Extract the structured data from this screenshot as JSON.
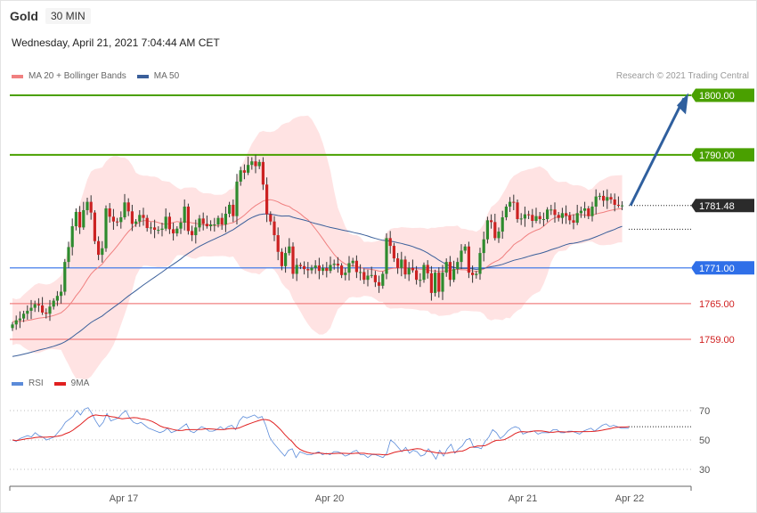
{
  "header": {
    "symbol": "Gold",
    "timeframe": "30 MIN",
    "datetime": "Wednesday, April 21, 2021 7:04:44 AM CET"
  },
  "legend_price": [
    {
      "label": "MA 20 + Bollinger Bands",
      "color": "#f08080"
    },
    {
      "label": "MA 50",
      "color": "#3a5f9a"
    }
  ],
  "credit": "Research © 2021 Trading Central",
  "legend_rsi": [
    {
      "label": "RSI",
      "color": "#5b8bd9"
    },
    {
      "label": "9MA",
      "color": "#e02020"
    }
  ],
  "colors": {
    "up": "#2e8b2e",
    "down": "#cc2222",
    "resistance": "#4aa000",
    "current": "#222222",
    "pivot": "#2f6fe8",
    "support": "#f08080"
  },
  "chart_data": [
    {
      "type": "candlestick",
      "title": "Gold 30 MIN",
      "ylim": [
        1753,
        1803
      ],
      "x_tick_labels": [
        "Apr 17",
        "Apr 20",
        "Apr 21",
        "Apr 22"
      ],
      "levels": [
        {
          "value": 1800.0,
          "label": "1800.00",
          "kind": "resistance"
        },
        {
          "value": 1790.0,
          "label": "1790.00",
          "kind": "resistance"
        },
        {
          "value": 1781.48,
          "label": "1781.48",
          "kind": "current"
        },
        {
          "value": 1771.0,
          "label": "1771.00",
          "kind": "pivot"
        },
        {
          "value": 1765.0,
          "label": "1765.00",
          "kind": "support"
        },
        {
          "value": 1759.0,
          "label": "1759.00",
          "kind": "support"
        }
      ],
      "close": [
        1761.5,
        1762.2,
        1762.5,
        1763.3,
        1763.8,
        1764.3,
        1764.9,
        1764.7,
        1763.5,
        1763.3,
        1764.5,
        1765.5,
        1766.3,
        1767.0,
        1772.0,
        1774.5,
        1778.0,
        1780.4,
        1777.8,
        1780.7,
        1782.1,
        1780.3,
        1775.5,
        1773.2,
        1774.3,
        1781.0,
        1779.6,
        1778.8,
        1778.7,
        1779.5,
        1782.0,
        1780.5,
        1778.4,
        1778.8,
        1779.9,
        1779.4,
        1777.7,
        1777.8,
        1777.4,
        1777.4,
        1777.6,
        1779.6,
        1777.5,
        1776.8,
        1777.6,
        1778.6,
        1781.3,
        1777.2,
        1776.5,
        1777.8,
        1779.3,
        1778.4,
        1778.0,
        1778.3,
        1778.3,
        1779.4,
        1778.3,
        1780.1,
        1781.6,
        1779.7,
        1785.5,
        1787.4,
        1787.0,
        1788.3,
        1788.9,
        1788.1,
        1788.8,
        1785.0,
        1780.0,
        1778.8,
        1776.5,
        1773.7,
        1771.3,
        1773.5,
        1774.6,
        1770.0,
        1771.5,
        1771.3,
        1770.8,
        1770.6,
        1771.0,
        1771.4,
        1770.5,
        1771.0,
        1770.5,
        1771.5,
        1771.7,
        1771.4,
        1769.8,
        1770.2,
        1771.8,
        1772.2,
        1770.3,
        1770.3,
        1769.0,
        1769.7,
        1769.8,
        1768.6,
        1768.0,
        1770.0,
        1776.0,
        1774.7,
        1772.6,
        1771.0,
        1772.4,
        1769.9,
        1771.0,
        1770.6,
        1769.0,
        1769.0,
        1771.5,
        1770.1,
        1766.8,
        1770.2,
        1767.0,
        1770.2,
        1772.0,
        1769.0,
        1770.8,
        1772.0,
        1773.9,
        1774.6,
        1770.2,
        1769.8,
        1770.0,
        1773.5,
        1775.8,
        1779.0,
        1778.7,
        1776.0,
        1777.1,
        1779.5,
        1781.3,
        1782.1,
        1782.0,
        1779.2,
        1779.3,
        1780.0,
        1779.9,
        1778.9,
        1779.7,
        1779.2,
        1779.2,
        1780.8,
        1780.8,
        1779.9,
        1779.4,
        1780.2,
        1779.8,
        1779.0,
        1778.6,
        1780.2,
        1780.6,
        1781.0,
        1779.7,
        1781.3,
        1783.0,
        1783.1,
        1782.3,
        1782.9,
        1782.5,
        1781.6,
        1781.5,
        1781.5
      ],
      "ma20_start": 1762.0,
      "ma50_start": 1756.0,
      "rsi": {
        "ylim": [
          20,
          80
        ],
        "ticks": [
          70,
          50,
          30
        ],
        "rsi_values": [
          50,
          49,
          51,
          52,
          53,
          52,
          55,
          53,
          52,
          50,
          51,
          52,
          55,
          58,
          62,
          64,
          66,
          70,
          67,
          71,
          72,
          68,
          63,
          59,
          62,
          68,
          63,
          64,
          65,
          68,
          70,
          65,
          62,
          61,
          62,
          60,
          58,
          57,
          56,
          55,
          56,
          58,
          55,
          56,
          57,
          59,
          61,
          56,
          55,
          57,
          59,
          58,
          56,
          56,
          57,
          59,
          57,
          59,
          60,
          57,
          63,
          66,
          65,
          66,
          67,
          65,
          66,
          60,
          52,
          48,
          45,
          42,
          39,
          43,
          44,
          38,
          42,
          41,
          40,
          40,
          41,
          42,
          40,
          41,
          40,
          42,
          42,
          41,
          39,
          40,
          42,
          43,
          40,
          40,
          38,
          40,
          40,
          39,
          38,
          41,
          50,
          48,
          45,
          42,
          45,
          41,
          43,
          42,
          39,
          40,
          44,
          41,
          37,
          43,
          39,
          44,
          47,
          41,
          44,
          46,
          50,
          51,
          45,
          45,
          44,
          49,
          52,
          57,
          55,
          51,
          53,
          56,
          58,
          59,
          58,
          54,
          55,
          56,
          56,
          54,
          55,
          55,
          55,
          57,
          57,
          55,
          55,
          56,
          56,
          55,
          54,
          56,
          57,
          58,
          56,
          58,
          60,
          61,
          59,
          60,
          59,
          58,
          58,
          58
        ]
      }
    }
  ]
}
